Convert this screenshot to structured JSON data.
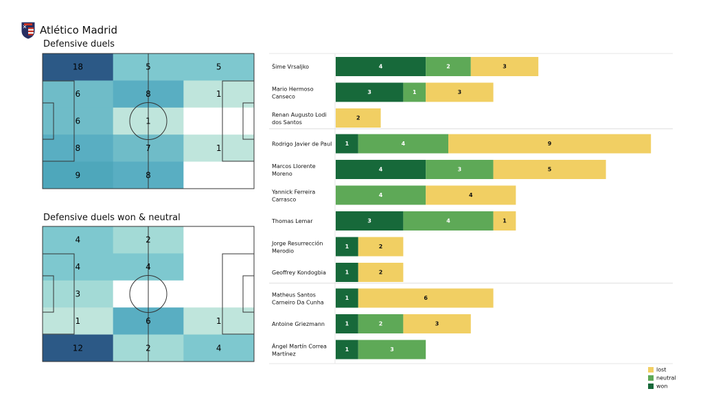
{
  "team": {
    "name": "Atlético Madrid",
    "logo_icon": "atletico-madrid-crest-icon",
    "crest_colors": [
      "#cb3524",
      "#ffffff",
      "#272e61"
    ]
  },
  "chart_data": [
    {
      "type": "heatmap",
      "title": "Defensive duels",
      "grid_rows": 5,
      "grid_cols": 3,
      "cells": [
        [
          18,
          5,
          5
        ],
        [
          6,
          8,
          1
        ],
        [
          6,
          1,
          null
        ],
        [
          8,
          7,
          1
        ],
        [
          9,
          8,
          null
        ]
      ],
      "colors": [
        [
          "#2c5986",
          "#7ec8cf",
          "#7ec8cf"
        ],
        [
          "#6fbcc8",
          "#59aec2",
          "#bfe5dc"
        ],
        [
          "#6fbcc8",
          "#bfe5dc",
          null
        ],
        [
          "#59aec2",
          "#6fbcc8",
          "#bfe5dc"
        ],
        [
          "#4ea7bb",
          "#59aec2",
          null
        ]
      ]
    },
    {
      "type": "heatmap",
      "title": "Defensive duels won & neutral",
      "grid_rows": 5,
      "grid_cols": 3,
      "cells": [
        [
          4,
          2,
          null
        ],
        [
          4,
          4,
          null
        ],
        [
          3,
          null,
          null
        ],
        [
          1,
          6,
          1
        ],
        [
          12,
          2,
          4
        ]
      ],
      "colors": [
        [
          "#7ec8cf",
          "#a3dad6",
          null
        ],
        [
          "#7ec8cf",
          "#7ec8cf",
          null
        ],
        [
          "#a3dad6",
          null,
          null
        ],
        [
          "#bfe5dc",
          "#59aec2",
          "#bfe5dc"
        ],
        [
          "#2c5986",
          "#a3dad6",
          "#7ec8cf"
        ]
      ]
    },
    {
      "type": "bar",
      "orientation": "horizontal",
      "stacked": true,
      "series_colors": {
        "won": "#17693a",
        "neutral": "#5ea957",
        "lost": "#f1cf63"
      },
      "legend": {
        "position": "bottom-right",
        "entries": [
          "lost",
          "neutral",
          "won"
        ]
      },
      "groups": [
        {
          "players": [
            {
              "name": [
                "Šime Vrsaljko"
              ],
              "won": 4,
              "neutral": 2,
              "lost": 3
            },
            {
              "name": [
                "Mario Hermoso",
                "Canseco"
              ],
              "won": 3,
              "neutral": 1,
              "lost": 3
            },
            {
              "name": [
                "Renan Augusto Lodi",
                "dos Santos"
              ],
              "won": 0,
              "neutral": 0,
              "lost": 2
            }
          ]
        },
        {
          "players": [
            {
              "name": [
                "Rodrigo Javier de Paul"
              ],
              "won": 1,
              "neutral": 4,
              "lost": 9
            },
            {
              "name": [
                "Marcos Llorente",
                "Moreno"
              ],
              "won": 4,
              "neutral": 3,
              "lost": 5
            },
            {
              "name": [
                "Yannick Ferreira",
                "Carrasco"
              ],
              "won": 0,
              "neutral": 4,
              "lost": 4
            },
            {
              "name": [
                "Thomas Lemar"
              ],
              "won": 3,
              "neutral": 4,
              "lost": 1
            },
            {
              "name": [
                "Jorge Resurrección",
                "Merodio"
              ],
              "won": 1,
              "neutral": 0,
              "lost": 2
            },
            {
              "name": [
                "Geoffrey Kondogbia"
              ],
              "won": 1,
              "neutral": 0,
              "lost": 2
            }
          ]
        },
        {
          "players": [
            {
              "name": [
                "Matheus Santos",
                "Carneiro Da Cunha"
              ],
              "won": 1,
              "neutral": 0,
              "lost": 6
            },
            {
              "name": [
                "Antoine Griezmann"
              ],
              "won": 1,
              "neutral": 2,
              "lost": 3
            },
            {
              "name": [
                "Ángel Martín Correa",
                "Martínez"
              ],
              "won": 1,
              "neutral": 3,
              "lost": 0
            }
          ]
        }
      ]
    }
  ]
}
